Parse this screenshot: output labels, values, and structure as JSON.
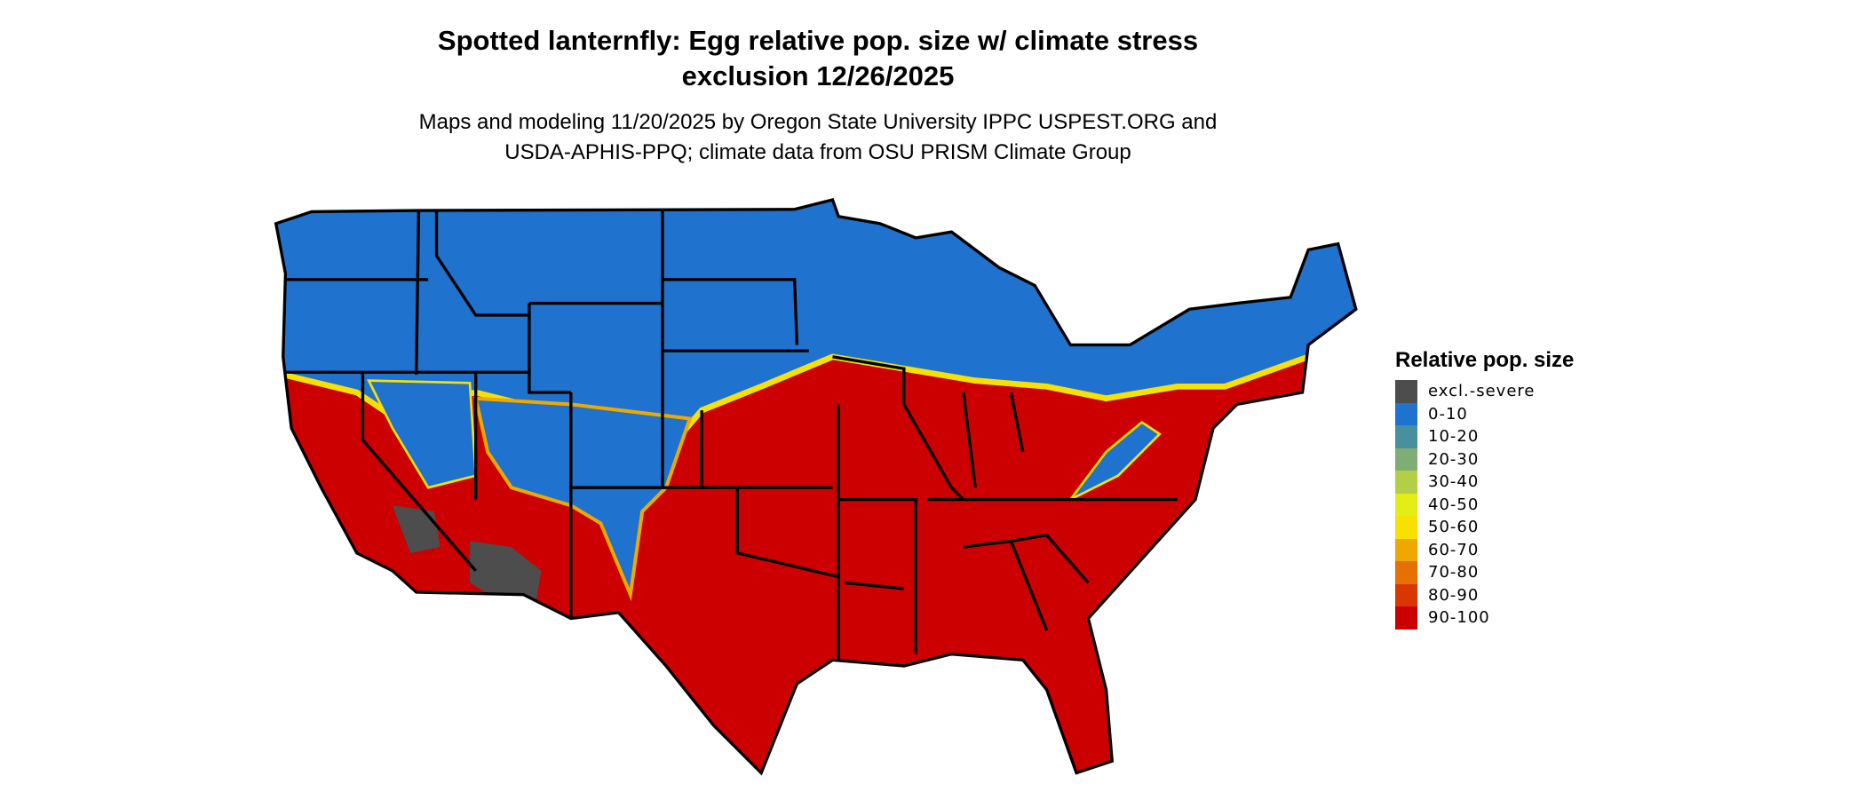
{
  "title_line1": "Spotted lanternfly: Egg relative pop. size w/ climate stress",
  "title_line2": "exclusion 12/26/2025",
  "subtitle_line1": "Maps and modeling 11/20/2025 by Oregon State University IPPC USPEST.ORG and",
  "subtitle_line2": "USDA-APHIS-PPQ; climate data from OSU PRISM Climate Group",
  "legend": {
    "title": "Relative pop. size",
    "items": [
      {
        "label": "excl.-severe",
        "color": "#4d4d4d"
      },
      {
        "label": "0-10",
        "color": "#1f72cd"
      },
      {
        "label": "10-20",
        "color": "#488f9f"
      },
      {
        "label": "20-30",
        "color": "#7eae74"
      },
      {
        "label": "30-40",
        "color": "#b3d045"
      },
      {
        "label": "40-50",
        "color": "#e3ee17"
      },
      {
        "label": "50-60",
        "color": "#f8e000"
      },
      {
        "label": "60-70",
        "color": "#efa800"
      },
      {
        "label": "70-80",
        "color": "#e67000"
      },
      {
        "label": "80-90",
        "color": "#d93600"
      },
      {
        "label": "90-100",
        "color": "#cc0000"
      }
    ]
  }
}
